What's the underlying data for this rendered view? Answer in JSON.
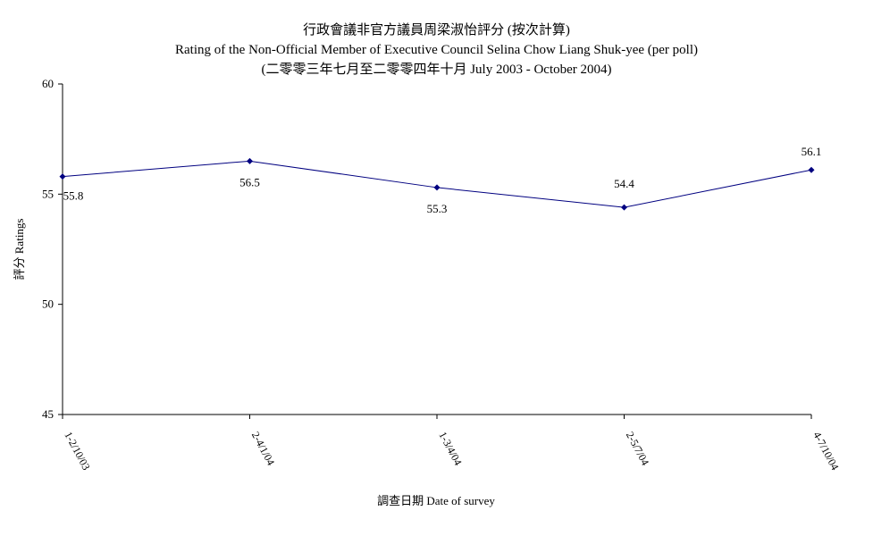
{
  "chart_data": {
    "type": "line",
    "title": "行政會議非官方議員周梁淑怡評分 (按次計算)",
    "subtitle": "Rating of the Non-Official Member of Executive Council Selina Chow Liang Shuk-yee  (per poll)",
    "subtitle2": "(二零零三年七月至二零零四年十月 July 2003 - October 2004)",
    "xlabel": "調查日期 Date of survey",
    "ylabel": "評分 Ratings",
    "ylim": [
      45,
      60
    ],
    "yticks": [
      45,
      50,
      55,
      60
    ],
    "categories": [
      "1-2/10/03",
      "2-4/1/04",
      "1-3/4/04",
      "2-5/7/04",
      "4-7/10/04"
    ],
    "series": [
      {
        "values": [
          55.8,
          56.5,
          55.3,
          54.4,
          56.1
        ],
        "color": "#000080"
      }
    ],
    "data_labels": [
      "55.8",
      "56.5",
      "55.3",
      "54.4",
      "56.1"
    ],
    "grid": false,
    "legend": "none"
  }
}
